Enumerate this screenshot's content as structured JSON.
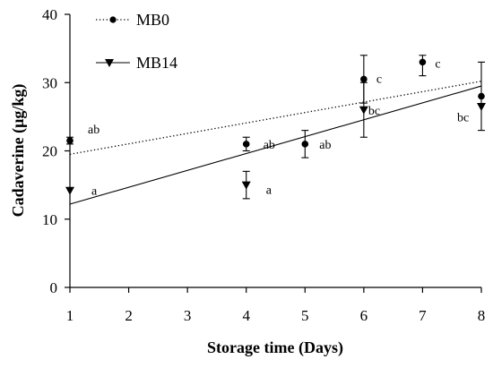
{
  "chart_data": {
    "type": "line",
    "xlabel": "Storage time (Days)",
    "ylabel": "Cadaverine (μg/kg)",
    "xlim": [
      1,
      8
    ],
    "ylim": [
      0,
      40
    ],
    "xticks": [
      1,
      2,
      3,
      4,
      5,
      6,
      7,
      8
    ],
    "yticks": [
      0,
      10,
      20,
      30,
      40
    ],
    "grid": false,
    "legend_position": "top-left",
    "series": [
      {
        "name": "MB0",
        "marker": "circle",
        "trendline_style": "dotted",
        "color": "#000000",
        "points": [
          {
            "x": 1,
            "y": 21.5,
            "error": [
              21,
              22
            ],
            "letter": "ab"
          },
          {
            "x": 4,
            "y": 21,
            "error": [
              20,
              22
            ],
            "letter": "ab"
          },
          {
            "x": 5,
            "y": 21,
            "error": [
              19,
              23
            ],
            "letter": "ab"
          },
          {
            "x": 6,
            "y": 30.5,
            "error": [
              27,
              34
            ],
            "letter": "c"
          },
          {
            "x": 7,
            "y": 33,
            "error": [
              31,
              34
            ],
            "letter": "c"
          },
          {
            "x": 8,
            "y": 28,
            "error": [
              23,
              33
            ],
            "letter": "bc"
          }
        ],
        "trendline": {
          "x": [
            1,
            8
          ],
          "y": [
            19.5,
            30.2
          ]
        }
      },
      {
        "name": "MB14",
        "marker": "triangle-down",
        "trendline_style": "solid",
        "color": "#000000",
        "points": [
          {
            "x": 1,
            "y": 14.2,
            "error": null,
            "letter": "a"
          },
          {
            "x": 4,
            "y": 15,
            "error": [
              13,
              17
            ],
            "letter": "a"
          },
          {
            "x": 6,
            "y": 26,
            "error": [
              22,
              30
            ],
            "letter": "bc"
          },
          {
            "x": 8,
            "y": 26.5,
            "error": null
          }
        ],
        "trendline": {
          "x": [
            1,
            8
          ],
          "y": [
            12.2,
            29.5
          ]
        }
      }
    ]
  }
}
